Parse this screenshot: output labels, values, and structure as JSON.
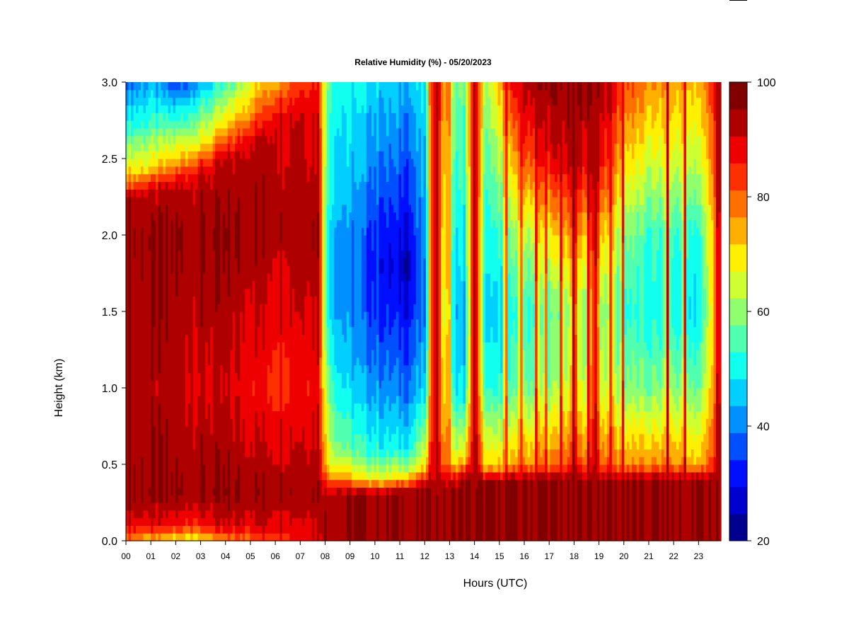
{
  "chart_data": {
    "type": "heatmap",
    "title": "Relative Humidity (%) - 05/20/2023",
    "xlabel": "Hours (UTC)",
    "ylabel": "Height (km)",
    "x_ticks": [
      "00",
      "01",
      "02",
      "03",
      "04",
      "05",
      "06",
      "07",
      "08",
      "09",
      "10",
      "11",
      "12",
      "13",
      "14",
      "15",
      "16",
      "17",
      "18",
      "19",
      "20",
      "21",
      "22",
      "23"
    ],
    "xlim": [
      0,
      23.9
    ],
    "y_ticks": [
      "0.0",
      "0.5",
      "1.0",
      "1.5",
      "2.0",
      "2.5",
      "3.0"
    ],
    "ylim": [
      0,
      3.0
    ],
    "colorbar": {
      "ticks": [
        "20",
        "40",
        "60",
        "80",
        "100"
      ],
      "range": [
        20,
        100
      ],
      "levels": [
        20,
        25,
        30,
        35,
        40,
        45,
        50,
        55,
        60,
        65,
        70,
        75,
        80,
        85,
        90,
        95,
        100
      ],
      "colors": [
        "#00008F",
        "#0000CF",
        "#0010FF",
        "#0050FF",
        "#0090FF",
        "#00CFFF",
        "#10FFEF",
        "#50FFAF",
        "#90FF6F",
        "#CFFF30",
        "#FFEF00",
        "#FFAF00",
        "#FF7000",
        "#FF3000",
        "#EF0000",
        "#AF0000",
        "#800000"
      ]
    },
    "profiles": [
      {
        "t": 0.0,
        "rh": [
          [
            0.0,
            85
          ],
          [
            0.08,
            92
          ],
          [
            0.25,
            100
          ],
          [
            0.5,
            100
          ],
          [
            1.0,
            98
          ],
          [
            2.0,
            100
          ],
          [
            2.25,
            100
          ],
          [
            2.35,
            80
          ],
          [
            2.5,
            68
          ],
          [
            2.75,
            52
          ],
          [
            3.0,
            40
          ]
        ]
      },
      {
        "t": 1.0,
        "rh": [
          [
            0.0,
            75
          ],
          [
            0.1,
            92
          ],
          [
            0.3,
            100
          ],
          [
            1.0,
            97
          ],
          [
            2.0,
            100
          ],
          [
            2.3,
            95
          ],
          [
            2.45,
            72
          ],
          [
            2.75,
            55
          ],
          [
            3.0,
            45
          ]
        ]
      },
      {
        "t": 2.0,
        "rh": [
          [
            0.0,
            70
          ],
          [
            0.1,
            90
          ],
          [
            0.3,
            100
          ],
          [
            1.0,
            96
          ],
          [
            2.0,
            100
          ],
          [
            2.3,
            97
          ],
          [
            2.5,
            75
          ],
          [
            2.75,
            55
          ],
          [
            3.0,
            35
          ]
        ]
      },
      {
        "t": 3.0,
        "rh": [
          [
            0.0,
            72
          ],
          [
            0.1,
            90
          ],
          [
            0.3,
            100
          ],
          [
            1.0,
            95
          ],
          [
            2.0,
            100
          ],
          [
            2.4,
            96
          ],
          [
            2.6,
            72
          ],
          [
            3.0,
            45
          ]
        ]
      },
      {
        "t": 4.0,
        "rh": [
          [
            0.0,
            80
          ],
          [
            0.1,
            93
          ],
          [
            0.3,
            100
          ],
          [
            1.0,
            94
          ],
          [
            2.0,
            100
          ],
          [
            2.5,
            95
          ],
          [
            2.7,
            75
          ],
          [
            3.0,
            55
          ]
        ]
      },
      {
        "t": 5.0,
        "rh": [
          [
            0.0,
            85
          ],
          [
            0.1,
            95
          ],
          [
            0.3,
            100
          ],
          [
            1.0,
            92
          ],
          [
            2.0,
            100
          ],
          [
            2.6,
            97
          ],
          [
            2.8,
            80
          ],
          [
            3.0,
            70
          ]
        ]
      },
      {
        "t": 6.0,
        "rh": [
          [
            0.0,
            88
          ],
          [
            0.1,
            95
          ],
          [
            0.3,
            100
          ],
          [
            1.0,
            90
          ],
          [
            2.0,
            98
          ],
          [
            2.7,
            97
          ],
          [
            3.0,
            80
          ]
        ]
      },
      {
        "t": 7.0,
        "rh": [
          [
            0.0,
            92
          ],
          [
            0.3,
            100
          ],
          [
            1.0,
            92
          ],
          [
            2.0,
            100
          ],
          [
            2.8,
            96
          ],
          [
            3.0,
            88
          ]
        ]
      },
      {
        "t": 7.75,
        "rh": [
          [
            0.0,
            95
          ],
          [
            0.3,
            100
          ],
          [
            1.0,
            93
          ],
          [
            2.0,
            100
          ],
          [
            3.0,
            92
          ]
        ]
      },
      {
        "t": 8.05,
        "rh": [
          [
            0.0,
            100
          ],
          [
            0.3,
            98
          ],
          [
            0.5,
            75
          ],
          [
            1.0,
            65
          ],
          [
            1.5,
            55
          ],
          [
            2.0,
            55
          ],
          [
            2.5,
            60
          ],
          [
            3.0,
            62
          ]
        ]
      },
      {
        "t": 8.5,
        "rh": [
          [
            0.0,
            100
          ],
          [
            0.3,
            100
          ],
          [
            0.45,
            75
          ],
          [
            0.6,
            62
          ],
          [
            1.0,
            52
          ],
          [
            1.5,
            45
          ],
          [
            2.0,
            45
          ],
          [
            2.5,
            50
          ],
          [
            3.0,
            52
          ]
        ]
      },
      {
        "t": 9.5,
        "rh": [
          [
            0.0,
            100
          ],
          [
            0.3,
            100
          ],
          [
            0.42,
            72
          ],
          [
            0.6,
            55
          ],
          [
            1.0,
            45
          ],
          [
            1.5,
            38
          ],
          [
            2.0,
            38
          ],
          [
            2.5,
            45
          ],
          [
            3.0,
            50
          ]
        ]
      },
      {
        "t": 10.5,
        "rh": [
          [
            0.0,
            100
          ],
          [
            0.3,
            100
          ],
          [
            0.42,
            70
          ],
          [
            0.6,
            52
          ],
          [
            1.0,
            42
          ],
          [
            1.5,
            33
          ],
          [
            1.8,
            30
          ],
          [
            2.0,
            32
          ],
          [
            2.5,
            40
          ],
          [
            3.0,
            48
          ]
        ]
      },
      {
        "t": 11.3,
        "rh": [
          [
            0.0,
            100
          ],
          [
            0.32,
            100
          ],
          [
            0.45,
            68
          ],
          [
            0.6,
            52
          ],
          [
            1.0,
            40
          ],
          [
            1.5,
            32
          ],
          [
            1.8,
            26
          ],
          [
            2.0,
            30
          ],
          [
            2.5,
            38
          ],
          [
            3.0,
            46
          ]
        ]
      },
      {
        "t": 12.0,
        "rh": [
          [
            0.0,
            100
          ],
          [
            0.35,
            100
          ],
          [
            0.5,
            70
          ],
          [
            1.0,
            48
          ],
          [
            1.5,
            40
          ],
          [
            2.0,
            42
          ],
          [
            2.5,
            45
          ],
          [
            3.0,
            50
          ]
        ]
      },
      {
        "t": 12.5,
        "rh": [
          [
            0.0,
            100
          ],
          [
            0.4,
            98
          ],
          [
            0.7,
            92
          ],
          [
            1.0,
            92
          ],
          [
            2.0,
            90
          ],
          [
            3.0,
            95
          ]
        ]
      },
      {
        "t": 13.0,
        "rh": [
          [
            0.0,
            100
          ],
          [
            0.35,
            100
          ],
          [
            0.5,
            72
          ],
          [
            1.0,
            55
          ],
          [
            1.5,
            50
          ],
          [
            2.0,
            55
          ],
          [
            2.5,
            60
          ],
          [
            3.0,
            65
          ]
        ]
      },
      {
        "t": 13.6,
        "rh": [
          [
            0.0,
            100
          ],
          [
            0.4,
            100
          ],
          [
            0.55,
            72
          ],
          [
            1.0,
            48
          ],
          [
            1.5,
            45
          ],
          [
            2.0,
            50
          ],
          [
            2.5,
            55
          ],
          [
            3.0,
            58
          ]
        ]
      },
      {
        "t": 14.0,
        "rh": [
          [
            0.0,
            100
          ],
          [
            0.5,
            97
          ],
          [
            1.0,
            92
          ],
          [
            2.0,
            92
          ],
          [
            3.0,
            95
          ]
        ]
      },
      {
        "t": 14.5,
        "rh": [
          [
            0.0,
            100
          ],
          [
            0.38,
            100
          ],
          [
            0.5,
            72
          ],
          [
            1.0,
            52
          ],
          [
            1.5,
            45
          ],
          [
            2.0,
            50
          ],
          [
            2.5,
            55
          ],
          [
            3.0,
            62
          ]
        ]
      },
      {
        "t": 15.3,
        "rh": [
          [
            0.0,
            100
          ],
          [
            0.4,
            100
          ],
          [
            0.5,
            75
          ],
          [
            1.0,
            55
          ],
          [
            1.5,
            50
          ],
          [
            2.0,
            58
          ],
          [
            2.5,
            70
          ],
          [
            3.0,
            85
          ]
        ]
      },
      {
        "t": 16.0,
        "rh": [
          [
            0.0,
            100
          ],
          [
            0.4,
            100
          ],
          [
            0.5,
            80
          ],
          [
            1.0,
            60
          ],
          [
            1.5,
            55
          ],
          [
            2.0,
            65
          ],
          [
            2.5,
            85
          ],
          [
            3.0,
            98
          ]
        ]
      },
      {
        "t": 17.0,
        "rh": [
          [
            0.0,
            100
          ],
          [
            0.4,
            100
          ],
          [
            0.5,
            82
          ],
          [
            1.0,
            62
          ],
          [
            1.5,
            58
          ],
          [
            2.0,
            72
          ],
          [
            2.5,
            92
          ],
          [
            3.0,
            100
          ]
        ]
      },
      {
        "t": 18.0,
        "rh": [
          [
            0.0,
            100
          ],
          [
            0.4,
            100
          ],
          [
            0.5,
            85
          ],
          [
            1.0,
            68
          ],
          [
            1.5,
            62
          ],
          [
            2.0,
            78
          ],
          [
            2.5,
            96
          ],
          [
            3.0,
            100
          ]
        ]
      },
      {
        "t": 19.0,
        "rh": [
          [
            0.0,
            100
          ],
          [
            0.4,
            100
          ],
          [
            0.5,
            85
          ],
          [
            1.0,
            70
          ],
          [
            1.5,
            65
          ],
          [
            2.0,
            78
          ],
          [
            2.5,
            95
          ],
          [
            3.0,
            100
          ]
        ]
      },
      {
        "t": 20.0,
        "rh": [
          [
            0.0,
            100
          ],
          [
            0.4,
            100
          ],
          [
            0.5,
            80
          ],
          [
            1.0,
            62
          ],
          [
            1.5,
            55
          ],
          [
            2.0,
            62
          ],
          [
            2.5,
            75
          ],
          [
            3.0,
            88
          ]
        ]
      },
      {
        "t": 21.0,
        "rh": [
          [
            0.0,
            100
          ],
          [
            0.4,
            100
          ],
          [
            0.5,
            80
          ],
          [
            1.0,
            60
          ],
          [
            1.5,
            52
          ],
          [
            2.0,
            55
          ],
          [
            2.5,
            68
          ],
          [
            3.0,
            80
          ]
        ]
      },
      {
        "t": 22.0,
        "rh": [
          [
            0.0,
            100
          ],
          [
            0.4,
            100
          ],
          [
            0.5,
            80
          ],
          [
            1.0,
            62
          ],
          [
            1.5,
            52
          ],
          [
            2.0,
            55
          ],
          [
            2.5,
            68
          ],
          [
            3.0,
            78
          ]
        ]
      },
      {
        "t": 23.0,
        "rh": [
          [
            0.0,
            100
          ],
          [
            0.4,
            100
          ],
          [
            0.5,
            75
          ],
          [
            1.0,
            58
          ],
          [
            1.5,
            48
          ],
          [
            2.0,
            52
          ],
          [
            2.5,
            65
          ],
          [
            3.0,
            75
          ]
        ]
      },
      {
        "t": 23.9,
        "rh": [
          [
            0.0,
            100
          ],
          [
            0.4,
            100
          ],
          [
            0.5,
            95
          ],
          [
            1.0,
            90
          ],
          [
            2.0,
            90
          ],
          [
            3.0,
            98
          ]
        ]
      }
    ],
    "moist_streaks": [
      {
        "t": 12.4,
        "w": 0.3,
        "rh": 98
      },
      {
        "t": 12.95,
        "w": 0.1,
        "rh": 96
      },
      {
        "t": 14.0,
        "w": 0.2,
        "rh": 97
      },
      {
        "t": 15.25,
        "w": 0.12,
        "rh": 95
      },
      {
        "t": 15.85,
        "w": 0.1,
        "rh": 96
      },
      {
        "t": 16.5,
        "w": 0.1,
        "rh": 97
      },
      {
        "t": 16.85,
        "w": 0.08,
        "rh": 95
      },
      {
        "t": 17.5,
        "w": 0.1,
        "rh": 96
      },
      {
        "t": 18.0,
        "w": 0.18,
        "rh": 100
      },
      {
        "t": 18.6,
        "w": 0.1,
        "rh": 97
      },
      {
        "t": 18.85,
        "w": 0.2,
        "rh": 100
      },
      {
        "t": 19.5,
        "w": 0.1,
        "rh": 96
      },
      {
        "t": 19.95,
        "w": 0.1,
        "rh": 95
      },
      {
        "t": 21.75,
        "w": 0.12,
        "rh": 98
      },
      {
        "t": 22.45,
        "w": 0.12,
        "rh": 96
      },
      {
        "t": 23.8,
        "w": 0.18,
        "rh": 98
      }
    ]
  }
}
